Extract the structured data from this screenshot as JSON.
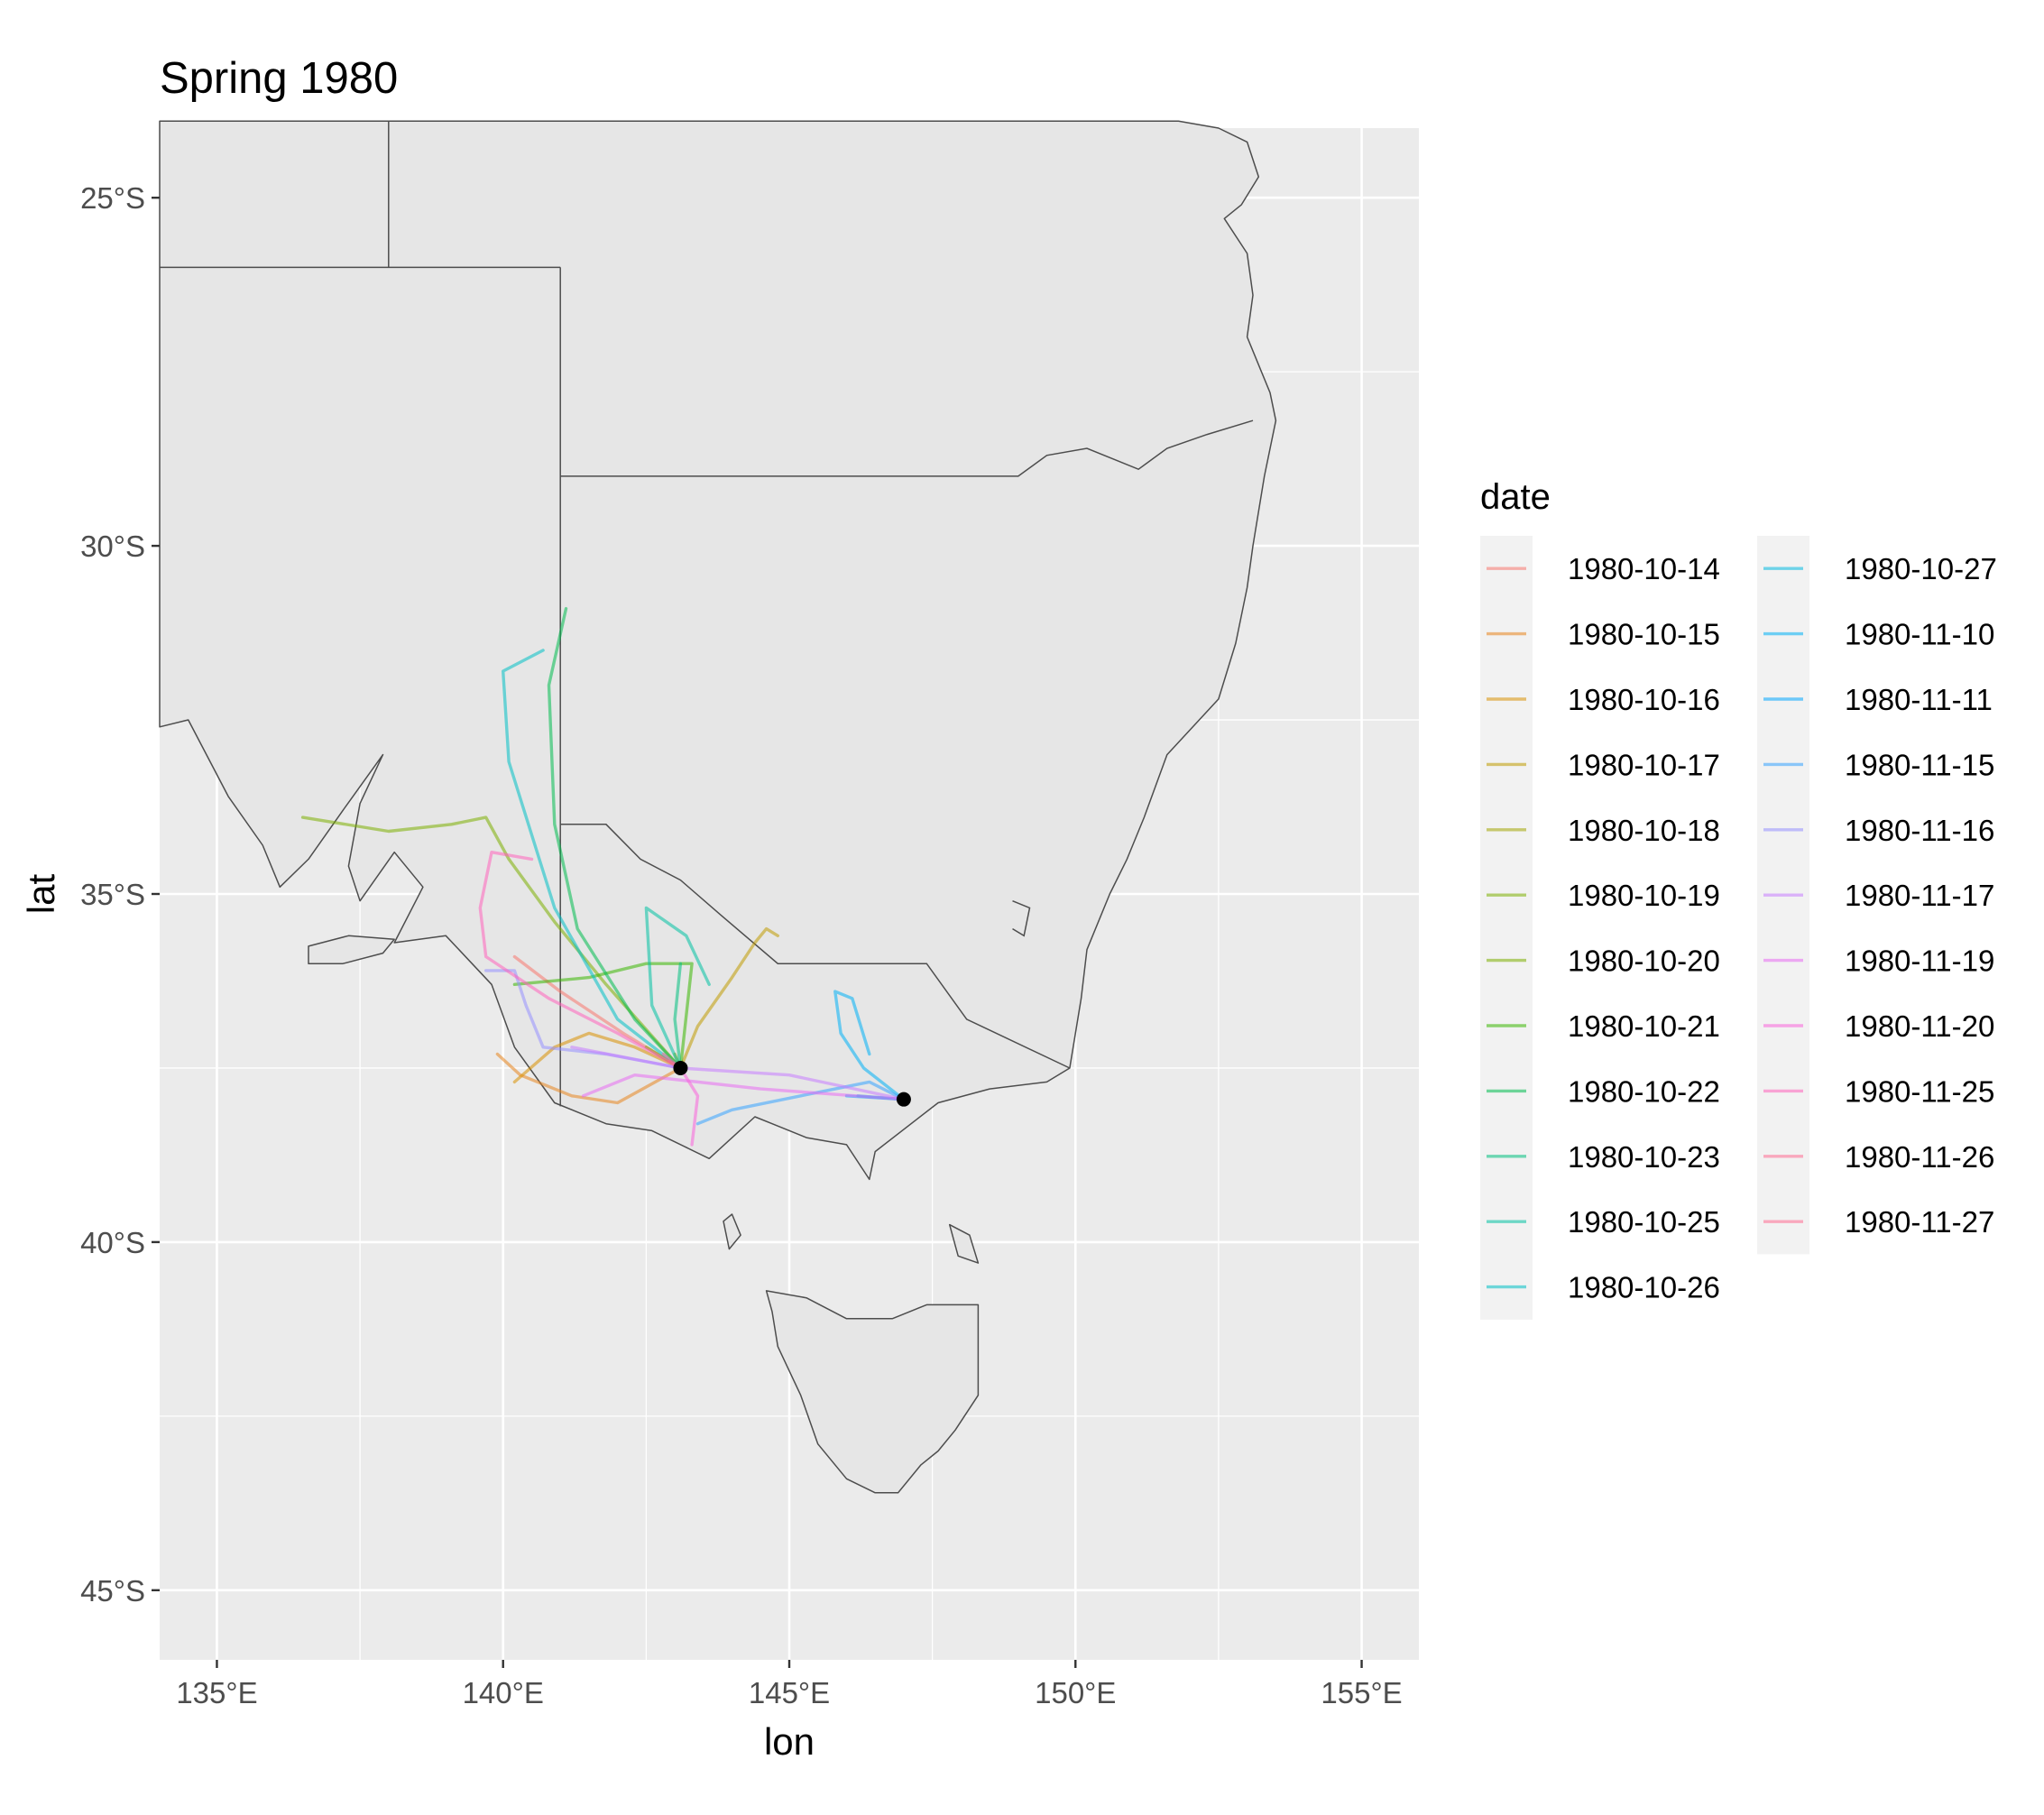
{
  "title": "Spring 1980",
  "chart_data": {
    "type": "line",
    "title": "Spring 1980",
    "xlabel": "lon",
    "ylabel": "lat",
    "xlim": [
      134,
      156
    ],
    "ylim": [
      -46,
      -24
    ],
    "x_ticks": [
      135,
      140,
      145,
      150,
      155
    ],
    "x_tick_labels": [
      "135°E",
      "140°E",
      "145°E",
      "150°E",
      "155°E"
    ],
    "y_ticks": [
      -25,
      -30,
      -35,
      -40,
      -45
    ],
    "y_tick_labels": [
      "25°S",
      "30°S",
      "35°S",
      "40°S",
      "45°S"
    ],
    "grid": true,
    "legend": {
      "title": "date",
      "placement": "right",
      "columns": 2
    },
    "origins": [
      {
        "name": "origin-1",
        "x": 143.1,
        "y": -37.5
      },
      {
        "name": "origin-2",
        "x": 147.0,
        "y": -37.95
      }
    ],
    "series": [
      {
        "name": "1980-10-14",
        "color": "#F8766D",
        "points": [
          [
            143.1,
            -37.5
          ],
          [
            142.1,
            -37.0
          ],
          [
            141.0,
            -36.4
          ],
          [
            140.2,
            -35.9
          ]
        ]
      },
      {
        "name": "1980-10-15",
        "color": "#E7851E",
        "points": [
          [
            143.1,
            -37.5
          ],
          [
            142.0,
            -38.0
          ],
          [
            141.2,
            -37.9
          ],
          [
            140.3,
            -37.6
          ],
          [
            139.9,
            -37.3
          ]
        ]
      },
      {
        "name": "1980-10-16",
        "color": "#D89000",
        "points": [
          [
            143.1,
            -37.5
          ],
          [
            142.3,
            -37.2
          ],
          [
            141.5,
            -37.0
          ],
          [
            140.9,
            -37.2
          ],
          [
            140.2,
            -37.7
          ]
        ]
      },
      {
        "name": "1980-10-17",
        "color": "#C09B00",
        "points": [
          [
            143.1,
            -37.5
          ],
          [
            143.4,
            -36.9
          ],
          [
            144.0,
            -36.2
          ],
          [
            144.4,
            -35.7
          ],
          [
            144.6,
            -35.5
          ],
          [
            144.8,
            -35.6
          ]
        ]
      },
      {
        "name": "1980-10-18",
        "color": "#A3A500",
        "points": [
          [
            143.1,
            -37.5
          ],
          [
            143.0,
            -37.3
          ]
        ]
      },
      {
        "name": "1980-10-19",
        "color": "#7CAE00",
        "points": [
          [
            143.1,
            -37.5
          ],
          [
            141.8,
            -36.3
          ],
          [
            140.9,
            -35.4
          ],
          [
            140.1,
            -34.5
          ],
          [
            139.7,
            -33.9
          ],
          [
            139.1,
            -34.0
          ],
          [
            138.0,
            -34.1
          ],
          [
            136.5,
            -33.9
          ]
        ]
      },
      {
        "name": "1980-10-20",
        "color": "#7CAE00",
        "points": [
          [
            143.1,
            -37.5
          ],
          [
            142.5,
            -37.2
          ]
        ]
      },
      {
        "name": "1980-10-21",
        "color": "#39B600",
        "points": [
          [
            143.1,
            -37.5
          ],
          [
            143.3,
            -36.0
          ],
          [
            142.5,
            -36.0
          ],
          [
            141.5,
            -36.2
          ],
          [
            140.2,
            -36.3
          ]
        ]
      },
      {
        "name": "1980-10-22",
        "color": "#00BB4E",
        "points": [
          [
            143.1,
            -37.5
          ],
          [
            142.3,
            -36.8
          ],
          [
            141.3,
            -35.5
          ],
          [
            140.9,
            -34.0
          ],
          [
            140.8,
            -32.0
          ],
          [
            141.1,
            -30.9
          ]
        ]
      },
      {
        "name": "1980-10-23",
        "color": "#00BF7D",
        "points": [
          [
            143.1,
            -37.5
          ],
          [
            143.0,
            -36.8
          ],
          [
            143.1,
            -36.0
          ]
        ]
      },
      {
        "name": "1980-10-25",
        "color": "#00C1A3",
        "points": [
          [
            143.1,
            -37.5
          ],
          [
            142.6,
            -36.6
          ],
          [
            142.5,
            -35.2
          ],
          [
            143.2,
            -35.6
          ],
          [
            143.6,
            -36.3
          ]
        ]
      },
      {
        "name": "1980-10-26",
        "color": "#00BFC4",
        "points": [
          [
            143.1,
            -37.5
          ],
          [
            142.0,
            -36.8
          ],
          [
            140.9,
            -35.2
          ],
          [
            140.1,
            -33.1
          ],
          [
            140.0,
            -31.8
          ],
          [
            140.7,
            -31.5
          ]
        ]
      },
      {
        "name": "1980-10-27",
        "color": "#00BAE0",
        "points": [
          [
            147.0,
            -37.95
          ],
          [
            146.2,
            -37.9
          ]
        ]
      },
      {
        "name": "1980-11-10",
        "color": "#00B0F6",
        "points": [
          [
            147.0,
            -37.95
          ],
          [
            146.3,
            -37.5
          ],
          [
            145.9,
            -37.0
          ],
          [
            145.8,
            -36.4
          ],
          [
            146.1,
            -36.5
          ],
          [
            146.4,
            -37.3
          ]
        ]
      },
      {
        "name": "1980-11-11",
        "color": "#00A5FF",
        "points": [
          [
            147.0,
            -37.95
          ],
          [
            146.0,
            -37.9
          ]
        ]
      },
      {
        "name": "1980-11-15",
        "color": "#35A2FF",
        "points": [
          [
            147.0,
            -37.95
          ],
          [
            146.4,
            -37.7
          ],
          [
            145.2,
            -37.9
          ],
          [
            144.0,
            -38.1
          ],
          [
            143.4,
            -38.3
          ]
        ]
      },
      {
        "name": "1980-11-16",
        "color": "#9590FF",
        "points": [
          [
            143.1,
            -37.5
          ],
          [
            141.8,
            -37.3
          ],
          [
            140.7,
            -37.2
          ],
          [
            140.4,
            -36.6
          ],
          [
            140.2,
            -36.1
          ],
          [
            139.7,
            -36.1
          ]
        ]
      },
      {
        "name": "1980-11-17",
        "color": "#C77CFF",
        "points": [
          [
            147.0,
            -37.95
          ],
          [
            145.0,
            -37.6
          ],
          [
            143.1,
            -37.5
          ],
          [
            141.2,
            -37.2
          ]
        ]
      },
      {
        "name": "1980-11-19",
        "color": "#E76BF3",
        "points": [
          [
            147.0,
            -37.95
          ],
          [
            144.5,
            -37.8
          ],
          [
            142.3,
            -37.6
          ],
          [
            141.4,
            -37.9
          ]
        ]
      },
      {
        "name": "1980-11-20",
        "color": "#FA62DB",
        "points": [
          [
            143.1,
            -37.5
          ],
          [
            143.4,
            -37.9
          ],
          [
            143.3,
            -38.6
          ]
        ]
      },
      {
        "name": "1980-11-25",
        "color": "#FF62BC",
        "points": [
          [
            143.1,
            -37.5
          ],
          [
            142.0,
            -37.0
          ],
          [
            140.8,
            -36.5
          ],
          [
            139.7,
            -35.9
          ],
          [
            139.6,
            -35.2
          ],
          [
            139.8,
            -34.4
          ],
          [
            140.5,
            -34.5
          ]
        ]
      },
      {
        "name": "1980-11-26",
        "color": "#FF6C91",
        "points": [
          [
            143.1,
            -37.5
          ],
          [
            142.8,
            -37.3
          ]
        ]
      },
      {
        "name": "1980-11-27",
        "color": "#FF6C91",
        "points": [
          [
            143.1,
            -37.5
          ],
          [
            142.9,
            -37.4
          ]
        ]
      }
    ]
  },
  "land": [
    {
      "name": "mainland",
      "points": [
        [
          134,
          -32.6
        ],
        [
          134.5,
          -32.5
        ],
        [
          135.2,
          -33.6
        ],
        [
          135.8,
          -34.3
        ],
        [
          136.1,
          -34.9
        ],
        [
          136.6,
          -34.5
        ],
        [
          137.2,
          -33.8
        ],
        [
          137.9,
          -33.0
        ],
        [
          137.5,
          -33.7
        ],
        [
          137.3,
          -34.6
        ],
        [
          137.5,
          -35.1
        ],
        [
          138.1,
          -34.4
        ],
        [
          138.6,
          -34.9
        ],
        [
          138.1,
          -35.7
        ],
        [
          139.0,
          -35.6
        ],
        [
          139.8,
          -36.3
        ],
        [
          140.2,
          -37.2
        ],
        [
          140.9,
          -38.0
        ],
        [
          141.8,
          -38.3
        ],
        [
          142.6,
          -38.4
        ],
        [
          143.6,
          -38.8
        ],
        [
          144.4,
          -38.2
        ],
        [
          144.7,
          -38.3
        ],
        [
          145.3,
          -38.5
        ],
        [
          146.0,
          -38.6
        ],
        [
          146.4,
          -39.1
        ],
        [
          146.5,
          -38.7
        ],
        [
          147.6,
          -38.0
        ],
        [
          148.5,
          -37.8
        ],
        [
          149.5,
          -37.7
        ],
        [
          149.9,
          -37.5
        ],
        [
          150.1,
          -36.5
        ],
        [
          150.2,
          -35.8
        ],
        [
          150.6,
          -35.0
        ],
        [
          150.9,
          -34.5
        ],
        [
          151.2,
          -33.9
        ],
        [
          151.6,
          -33.0
        ],
        [
          152.5,
          -32.2
        ],
        [
          152.8,
          -31.4
        ],
        [
          153.0,
          -30.6
        ],
        [
          153.1,
          -30.0
        ],
        [
          153.3,
          -29.0
        ],
        [
          153.5,
          -28.2
        ],
        [
          153.4,
          -27.8
        ],
        [
          153.0,
          -27.0
        ],
        [
          153.1,
          -26.4
        ],
        [
          153.0,
          -25.8
        ],
        [
          152.6,
          -25.3
        ],
        [
          152.9,
          -25.1
        ],
        [
          153.2,
          -24.7
        ],
        [
          153.0,
          -24.2
        ],
        [
          152.5,
          -24.0
        ],
        [
          151.8,
          -23.9
        ],
        [
          134,
          -23.9
        ]
      ]
    },
    {
      "name": "kangaroo-island",
      "points": [
        [
          136.6,
          -35.75
        ],
        [
          137.3,
          -35.6
        ],
        [
          138.1,
          -35.65
        ],
        [
          137.9,
          -35.85
        ],
        [
          137.2,
          -36.0
        ],
        [
          136.6,
          -36.0
        ]
      ]
    },
    {
      "name": "tasmania",
      "points": [
        [
          144.6,
          -40.7
        ],
        [
          145.3,
          -40.8
        ],
        [
          146.0,
          -41.1
        ],
        [
          146.8,
          -41.1
        ],
        [
          147.4,
          -40.9
        ],
        [
          147.9,
          -40.9
        ],
        [
          148.3,
          -40.9
        ],
        [
          148.3,
          -41.5
        ],
        [
          148.3,
          -42.2
        ],
        [
          147.9,
          -42.7
        ],
        [
          147.6,
          -43.0
        ],
        [
          147.3,
          -43.2
        ],
        [
          146.9,
          -43.6
        ],
        [
          146.5,
          -43.6
        ],
        [
          146.0,
          -43.4
        ],
        [
          145.5,
          -42.9
        ],
        [
          145.2,
          -42.2
        ],
        [
          144.8,
          -41.5
        ],
        [
          144.7,
          -41.0
        ]
      ]
    },
    {
      "name": "king-island",
      "points": [
        [
          143.85,
          -39.7
        ],
        [
          144.0,
          -39.6
        ],
        [
          144.15,
          -39.9
        ],
        [
          143.95,
          -40.1
        ]
      ]
    },
    {
      "name": "flinders-island",
      "points": [
        [
          147.8,
          -39.75
        ],
        [
          148.15,
          -39.9
        ],
        [
          148.3,
          -40.3
        ],
        [
          147.95,
          -40.2
        ]
      ]
    }
  ],
  "borders": [
    {
      "name": "wa-sa-border",
      "points": [
        [
          138.0,
          -23.9
        ],
        [
          138.0,
          -26.0
        ]
      ]
    },
    {
      "name": "sa-qld-nt-line",
      "points": [
        [
          134.0,
          -26.0
        ],
        [
          141.0,
          -26.0
        ]
      ]
    },
    {
      "name": "sa-east-border",
      "points": [
        [
          141.0,
          -26.0
        ],
        [
          141.0,
          -38.05
        ]
      ]
    },
    {
      "name": "qld-nsw-border",
      "points": [
        [
          141.0,
          -29.0
        ],
        [
          149.0,
          -29.0
        ],
        [
          149.5,
          -28.7
        ],
        [
          150.2,
          -28.6
        ],
        [
          151.1,
          -28.9
        ],
        [
          151.6,
          -28.6
        ],
        [
          152.3,
          -28.4
        ],
        [
          153.1,
          -28.2
        ]
      ]
    },
    {
      "name": "nsw-vic-border",
      "points": [
        [
          141.0,
          -34.0
        ],
        [
          141.8,
          -34.0
        ],
        [
          142.4,
          -34.5
        ],
        [
          143.1,
          -34.8
        ],
        [
          143.8,
          -35.3
        ],
        [
          144.8,
          -36.0
        ],
        [
          145.6,
          -36.0
        ],
        [
          146.5,
          -36.0
        ],
        [
          147.4,
          -36.0
        ],
        [
          148.1,
          -36.8
        ],
        [
          149.9,
          -37.5
        ]
      ]
    },
    {
      "name": "act-border",
      "points": [
        [
          148.9,
          -35.1
        ],
        [
          149.2,
          -35.2
        ],
        [
          149.1,
          -35.6
        ],
        [
          148.9,
          -35.5
        ]
      ]
    }
  ]
}
